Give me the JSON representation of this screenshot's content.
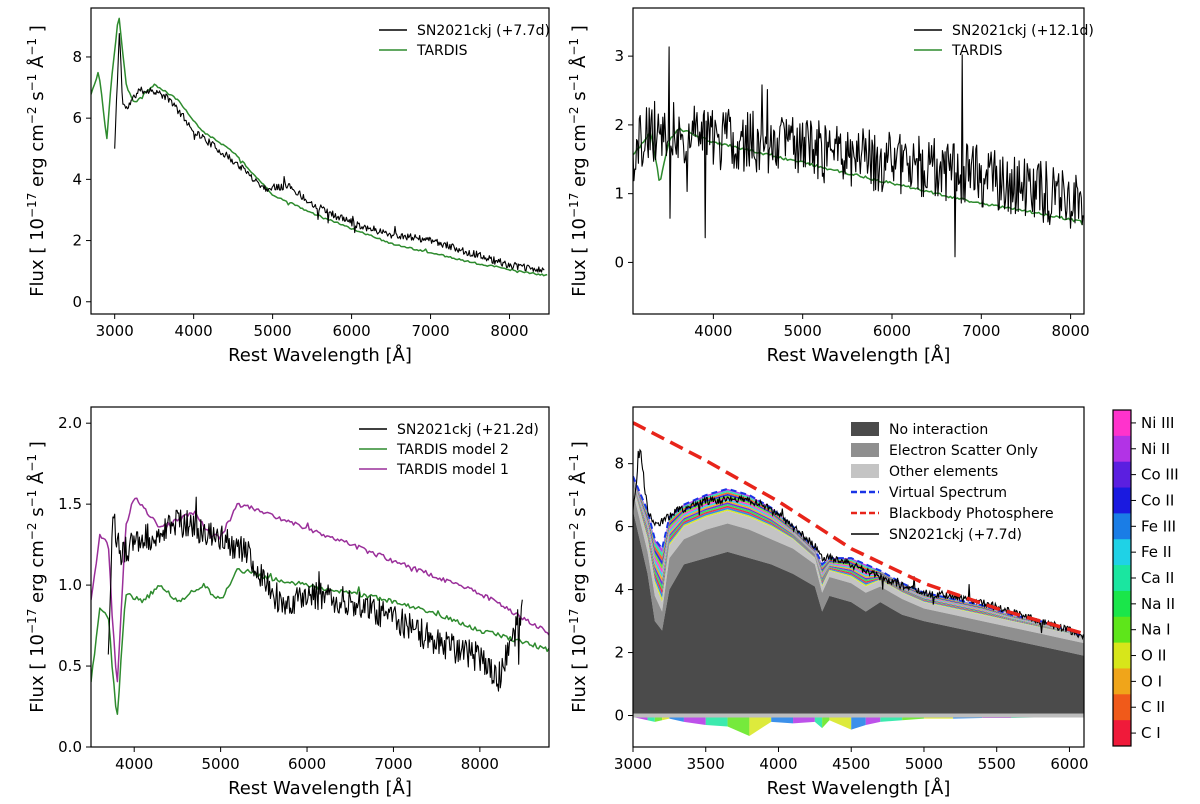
{
  "chart_data": [
    {
      "type": "line",
      "xlabel": "Rest Wavelength [Å]",
      "ylabel": "Flux  [ 10^-17 erg cm^-2 s^-1 Å^-1 ]",
      "ylabel_parts": {
        "pre": "Flux  [ 10",
        "e1": "−17",
        "mid1": " erg cm",
        "e2": "−2",
        "mid2": " s",
        "e3": "−1",
        "mid3": " Å",
        "e4": "−1",
        "post": "]"
      },
      "xlim": [
        2700,
        8500
      ],
      "ylim": [
        -0.4,
        9.6
      ],
      "xticks": [
        3000,
        4000,
        5000,
        6000,
        7000,
        8000
      ],
      "yticks": [
        0,
        2,
        4,
        6,
        8
      ],
      "legend_position": "top-right",
      "series": [
        {
          "name": "SN2021ckj (+7.7d)",
          "color": "#000000",
          "noise": 0.12,
          "seed": 11,
          "x": [
            3000,
            3060,
            3100,
            3150,
            3300,
            3500,
            3700,
            4000,
            4300,
            4600,
            4900,
            5200,
            5500,
            5800,
            6100,
            6500,
            7000,
            7500,
            8000,
            8450
          ],
          "y": [
            5.0,
            8.9,
            6.5,
            6.3,
            6.9,
            6.9,
            6.6,
            5.6,
            5.0,
            4.4,
            3.7,
            3.8,
            3.2,
            2.8,
            2.5,
            2.2,
            2.0,
            1.6,
            1.2,
            1.0
          ]
        },
        {
          "name": "TARDIS",
          "color": "#2e8b2e",
          "noise": 0.03,
          "seed": 23,
          "x": [
            2700,
            2800,
            2900,
            2950,
            3050,
            3150,
            3250,
            3500,
            3800,
            4100,
            4500,
            5000,
            5500,
            6000,
            6500,
            7000,
            7500,
            8000,
            8500
          ],
          "y": [
            6.8,
            7.5,
            5.3,
            7.0,
            9.4,
            7.0,
            6.5,
            7.1,
            6.6,
            5.6,
            4.9,
            3.5,
            2.9,
            2.4,
            1.9,
            1.6,
            1.3,
            1.05,
            0.85
          ]
        }
      ]
    },
    {
      "type": "line",
      "xlabel": "Rest Wavelength [Å]",
      "ylabel": "Flux  [ 10^-17 erg cm^-2 s^-1 Å^-1 ]",
      "ylabel_parts": {
        "pre": "Flux  [ 10",
        "e1": "−17",
        "mid1": " erg cm",
        "e2": "−2",
        "mid2": " s",
        "e3": "−1",
        "mid3": " Å",
        "e4": "−1",
        "post": "]"
      },
      "xlim": [
        3100,
        8150
      ],
      "ylim": [
        -0.75,
        3.7
      ],
      "xticks": [
        4000,
        5000,
        6000,
        7000,
        8000
      ],
      "yticks": [
        0,
        1,
        2,
        3
      ],
      "legend_position": "top-right",
      "series": [
        {
          "name": "SN2021ckj (+12.1d)",
          "color": "#000000",
          "noise": 0.45,
          "seed": 37,
          "x": [
            3100,
            3300,
            3600,
            4000,
            4500,
            5000,
            5500,
            6000,
            6500,
            7000,
            7500,
            8000,
            8150
          ],
          "y": [
            1.6,
            1.9,
            1.9,
            1.8,
            1.75,
            1.65,
            1.55,
            1.45,
            1.35,
            1.25,
            1.1,
            0.9,
            0.8
          ]
        },
        {
          "name": "TARDIS",
          "color": "#2e8b2e",
          "noise": 0.02,
          "seed": 41,
          "x": [
            3100,
            3300,
            3400,
            3500,
            3600,
            4000,
            4500,
            5000,
            5500,
            6000,
            6500,
            7000,
            7500,
            8000,
            8150
          ],
          "y": [
            1.55,
            1.9,
            1.15,
            1.75,
            1.95,
            1.75,
            1.6,
            1.45,
            1.3,
            1.15,
            1.0,
            0.85,
            0.75,
            0.62,
            0.58
          ]
        }
      ]
    },
    {
      "type": "line",
      "xlabel": "Rest Wavelength [Å]",
      "ylabel": "Flux  [ 10^-17 erg cm^-2 s^-1 Å^-1 ]",
      "ylabel_parts": {
        "pre": "Flux  [ 10",
        "e1": "−17",
        "mid1": " erg cm",
        "e2": "−2",
        "mid2": " s",
        "e3": "−1",
        "mid3": " Å",
        "e4": "−1",
        "post": "]"
      },
      "xlim": [
        3500,
        8800
      ],
      "ylim": [
        0,
        2.1
      ],
      "xticks": [
        4000,
        5000,
        6000,
        7000,
        8000
      ],
      "yticks": [
        0.0,
        0.5,
        1.0,
        1.5,
        2.0
      ],
      "legend_position": "top-right",
      "series": [
        {
          "name": "SN2021ckj (+21.2d)",
          "color": "#000000",
          "noise": 0.09,
          "seed": 53,
          "x": [
            3700,
            3750,
            3850,
            4000,
            4200,
            4500,
            4700,
            5000,
            5300,
            5600,
            5800,
            6000,
            6500,
            7000,
            7500,
            8000,
            8200,
            8400,
            8500
          ],
          "y": [
            0.65,
            1.4,
            1.2,
            1.25,
            1.3,
            1.4,
            1.35,
            1.3,
            1.2,
            0.95,
            0.85,
            0.95,
            0.9,
            0.8,
            0.65,
            0.55,
            0.4,
            0.7,
            0.9
          ]
        },
        {
          "name": "TARDIS model 2",
          "color": "#2e8b2e",
          "noise": 0.015,
          "seed": 61,
          "x": [
            3500,
            3600,
            3700,
            3800,
            3900,
            4100,
            4300,
            4500,
            4800,
            5000,
            5200,
            5500,
            6000,
            6500,
            7000,
            7500,
            8000,
            8500,
            8800
          ],
          "y": [
            0.4,
            0.85,
            0.8,
            0.15,
            0.95,
            0.9,
            1.0,
            0.9,
            1.0,
            0.9,
            1.1,
            1.05,
            1.0,
            0.95,
            0.9,
            0.82,
            0.72,
            0.65,
            0.6
          ]
        },
        {
          "name": "TARDIS model 1",
          "color": "#9a2f9a",
          "noise": 0.015,
          "seed": 71,
          "x": [
            3500,
            3600,
            3700,
            3800,
            3900,
            4000,
            4300,
            4500,
            4700,
            4900,
            5000,
            5200,
            5500,
            6000,
            6500,
            7000,
            7500,
            8000,
            8500,
            8800
          ],
          "y": [
            0.9,
            1.3,
            1.25,
            0.35,
            1.35,
            1.55,
            1.35,
            1.4,
            1.45,
            1.3,
            1.3,
            1.5,
            1.45,
            1.35,
            1.25,
            1.15,
            1.05,
            0.95,
            0.8,
            0.7
          ]
        }
      ]
    },
    {
      "type": "area",
      "xlabel": "Rest Wavelength [Å]",
      "ylabel": "Flux  [ 10^-17 erg cm^-2 s^-1 Å^-1 ]",
      "ylabel_parts": {
        "pre": "Flux  [ 10",
        "e1": "−17",
        "mid1": " erg cm",
        "e2": "−2",
        "mid2": " s",
        "e3": "−1",
        "mid3": " Å",
        "e4": "−1",
        "post": "]"
      },
      "xlim": [
        3000,
        6100
      ],
      "ylim": [
        -1.0,
        9.8
      ],
      "xticks": [
        3000,
        3500,
        4000,
        4500,
        5000,
        5500,
        6000
      ],
      "yticks": [
        0,
        2,
        4,
        6,
        8
      ],
      "legend_position": "top-right",
      "x": [
        3000,
        3100,
        3150,
        3200,
        3250,
        3350,
        3500,
        3650,
        3800,
        3950,
        4100,
        4250,
        4300,
        4350,
        4500,
        4600,
        4700,
        4850,
        5000,
        5200,
        5400,
        5600,
        5800,
        6000,
        6100
      ],
      "no_interaction": [
        6.5,
        4.5,
        3.0,
        2.7,
        4.0,
        4.8,
        5.0,
        5.2,
        5.0,
        4.8,
        4.5,
        4.1,
        3.3,
        3.8,
        3.6,
        3.3,
        3.6,
        3.2,
        3.0,
        2.8,
        2.6,
        2.4,
        2.2,
        2.0,
        1.9
      ],
      "electron_scatter": [
        7.1,
        5.2,
        3.8,
        3.3,
        5.0,
        5.6,
        5.9,
        6.1,
        5.9,
        5.6,
        5.3,
        4.8,
        3.9,
        4.4,
        4.2,
        3.9,
        4.1,
        3.7,
        3.4,
        3.2,
        3.0,
        2.8,
        2.6,
        2.4,
        2.3
      ],
      "other_elements": [
        7.3,
        5.6,
        4.2,
        3.6,
        5.4,
        6.0,
        6.3,
        6.5,
        6.3,
        6.0,
        5.6,
        5.0,
        4.1,
        4.6,
        4.4,
        4.1,
        4.3,
        3.9,
        3.6,
        3.4,
        3.2,
        3.0,
        2.8,
        2.6,
        2.45
      ],
      "virtual_spectrum": [
        7.6,
        6.5,
        5.6,
        5.3,
        6.3,
        6.7,
        7.0,
        7.2,
        7.0,
        6.6,
        6.0,
        5.3,
        4.8,
        5.0,
        5.0,
        4.8,
        4.6,
        4.2,
        3.9,
        3.7,
        3.5,
        3.2,
        3.0,
        2.7,
        2.5
      ],
      "absorption": [
        -0.05,
        -0.15,
        -0.2,
        -0.15,
        -0.1,
        -0.2,
        -0.3,
        -0.35,
        -0.65,
        -0.2,
        -0.25,
        -0.2,
        -0.4,
        -0.15,
        -0.45,
        -0.3,
        -0.2,
        -0.15,
        -0.1,
        -0.1,
        -0.08,
        -0.08,
        -0.06,
        -0.05,
        -0.05
      ],
      "blackbody": {
        "x": [
          3000,
          3500,
          4000,
          4500,
          5000,
          5500,
          6100
        ],
        "y": [
          9.3,
          8.1,
          6.8,
          5.3,
          4.2,
          3.4,
          2.6
        ]
      },
      "observed": {
        "x": [
          3000,
          3050,
          3100,
          3150,
          3300,
          3500,
          3700,
          3900,
          4100,
          4250,
          4300,
          4400,
          4600,
          4800,
          5000,
          5200,
          5400,
          5600,
          5800,
          6000,
          6100
        ],
        "y": [
          6.5,
          8.5,
          6.5,
          6.0,
          6.5,
          6.8,
          6.9,
          6.7,
          6.0,
          5.4,
          5.0,
          5.0,
          4.6,
          4.2,
          3.9,
          3.8,
          3.6,
          3.3,
          3.0,
          2.7,
          2.5
        ]
      },
      "legend": [
        {
          "name": "No interaction",
          "kind": "patch",
          "color": "#4b4b4b"
        },
        {
          "name": "Electron Scatter Only",
          "kind": "patch",
          "color": "#8f8f8f"
        },
        {
          "name": "Other elements",
          "kind": "patch",
          "color": "#c4c4c4"
        },
        {
          "name": "Virtual Spectrum",
          "kind": "dashed",
          "color": "#1a34e6"
        },
        {
          "name": "Blackbody Photosphere",
          "kind": "dashed",
          "color": "#e8241a"
        },
        {
          "name": "SN2021ckj (+7.7d)",
          "kind": "line",
          "color": "#000000"
        }
      ]
    }
  ],
  "colorbar": {
    "labels": [
      "Ni III",
      "Ni II",
      "Co III",
      "Co II",
      "Fe III",
      "Fe II",
      "Ca II",
      "Na II",
      "Na I",
      "O II",
      "O I",
      "C II",
      "C I"
    ],
    "colors": [
      "#ff33cc",
      "#b233e6",
      "#5b1fe0",
      "#1a1ae0",
      "#1a7de6",
      "#1fd2e6",
      "#1ae6a0",
      "#1ae64a",
      "#5ee61a",
      "#d7e61a",
      "#f0a51a",
      "#f05a1a",
      "#f01a3a"
    ]
  }
}
